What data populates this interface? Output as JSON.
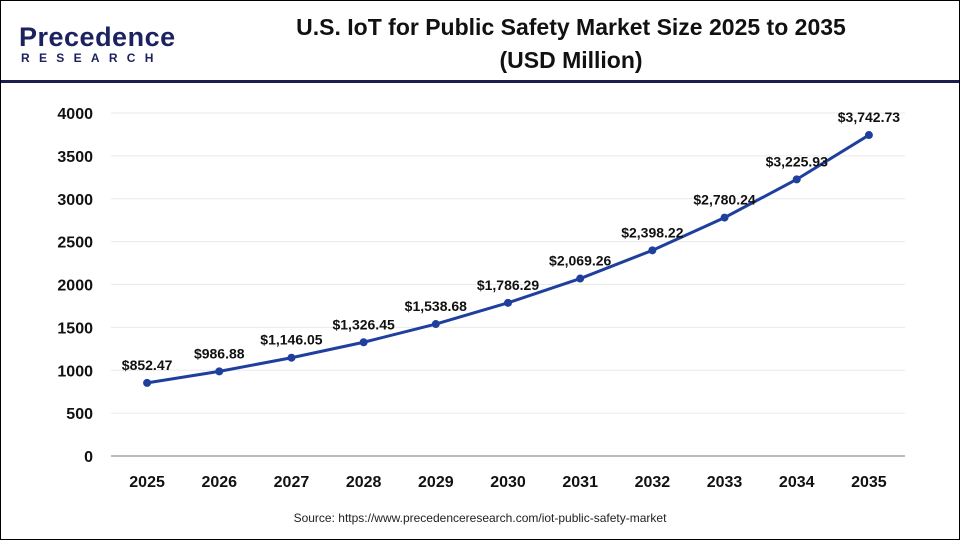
{
  "header": {
    "logo_text": "Precedence",
    "logo_sub": "RESEARCH",
    "title_line1": "U.S. IoT for Public Safety Market Size 2025 to 2035",
    "title_line2": "(USD Million)"
  },
  "source": "Source: https://www.precedenceresearch.com/iot-public-safety-market",
  "chart_data": {
    "type": "line",
    "title": "U.S. IoT for Public Safety Market Size 2025 to 2035 (USD Million)",
    "categories": [
      "2025",
      "2026",
      "2027",
      "2028",
      "2029",
      "2030",
      "2031",
      "2032",
      "2033",
      "2034",
      "2035"
    ],
    "values": [
      852.47,
      986.88,
      1146.05,
      1326.45,
      1538.68,
      1786.29,
      2069.26,
      2398.22,
      2780.24,
      3225.93,
      3742.73
    ],
    "labels": [
      "$852.47",
      "$986.88",
      "$1,146.05",
      "$1,326.45",
      "$1,538.68",
      "$1,786.29",
      "$2,069.26",
      "$2,398.22",
      "$2,780.24",
      "$3,225.93",
      "$3,742.73"
    ],
    "yticks": [
      "0",
      "500",
      "1000",
      "1500",
      "2000",
      "2500",
      "3000",
      "3500",
      "4000"
    ],
    "ylim": [
      0,
      4000
    ],
    "grid": true,
    "line_color": "#1f3f9e"
  }
}
